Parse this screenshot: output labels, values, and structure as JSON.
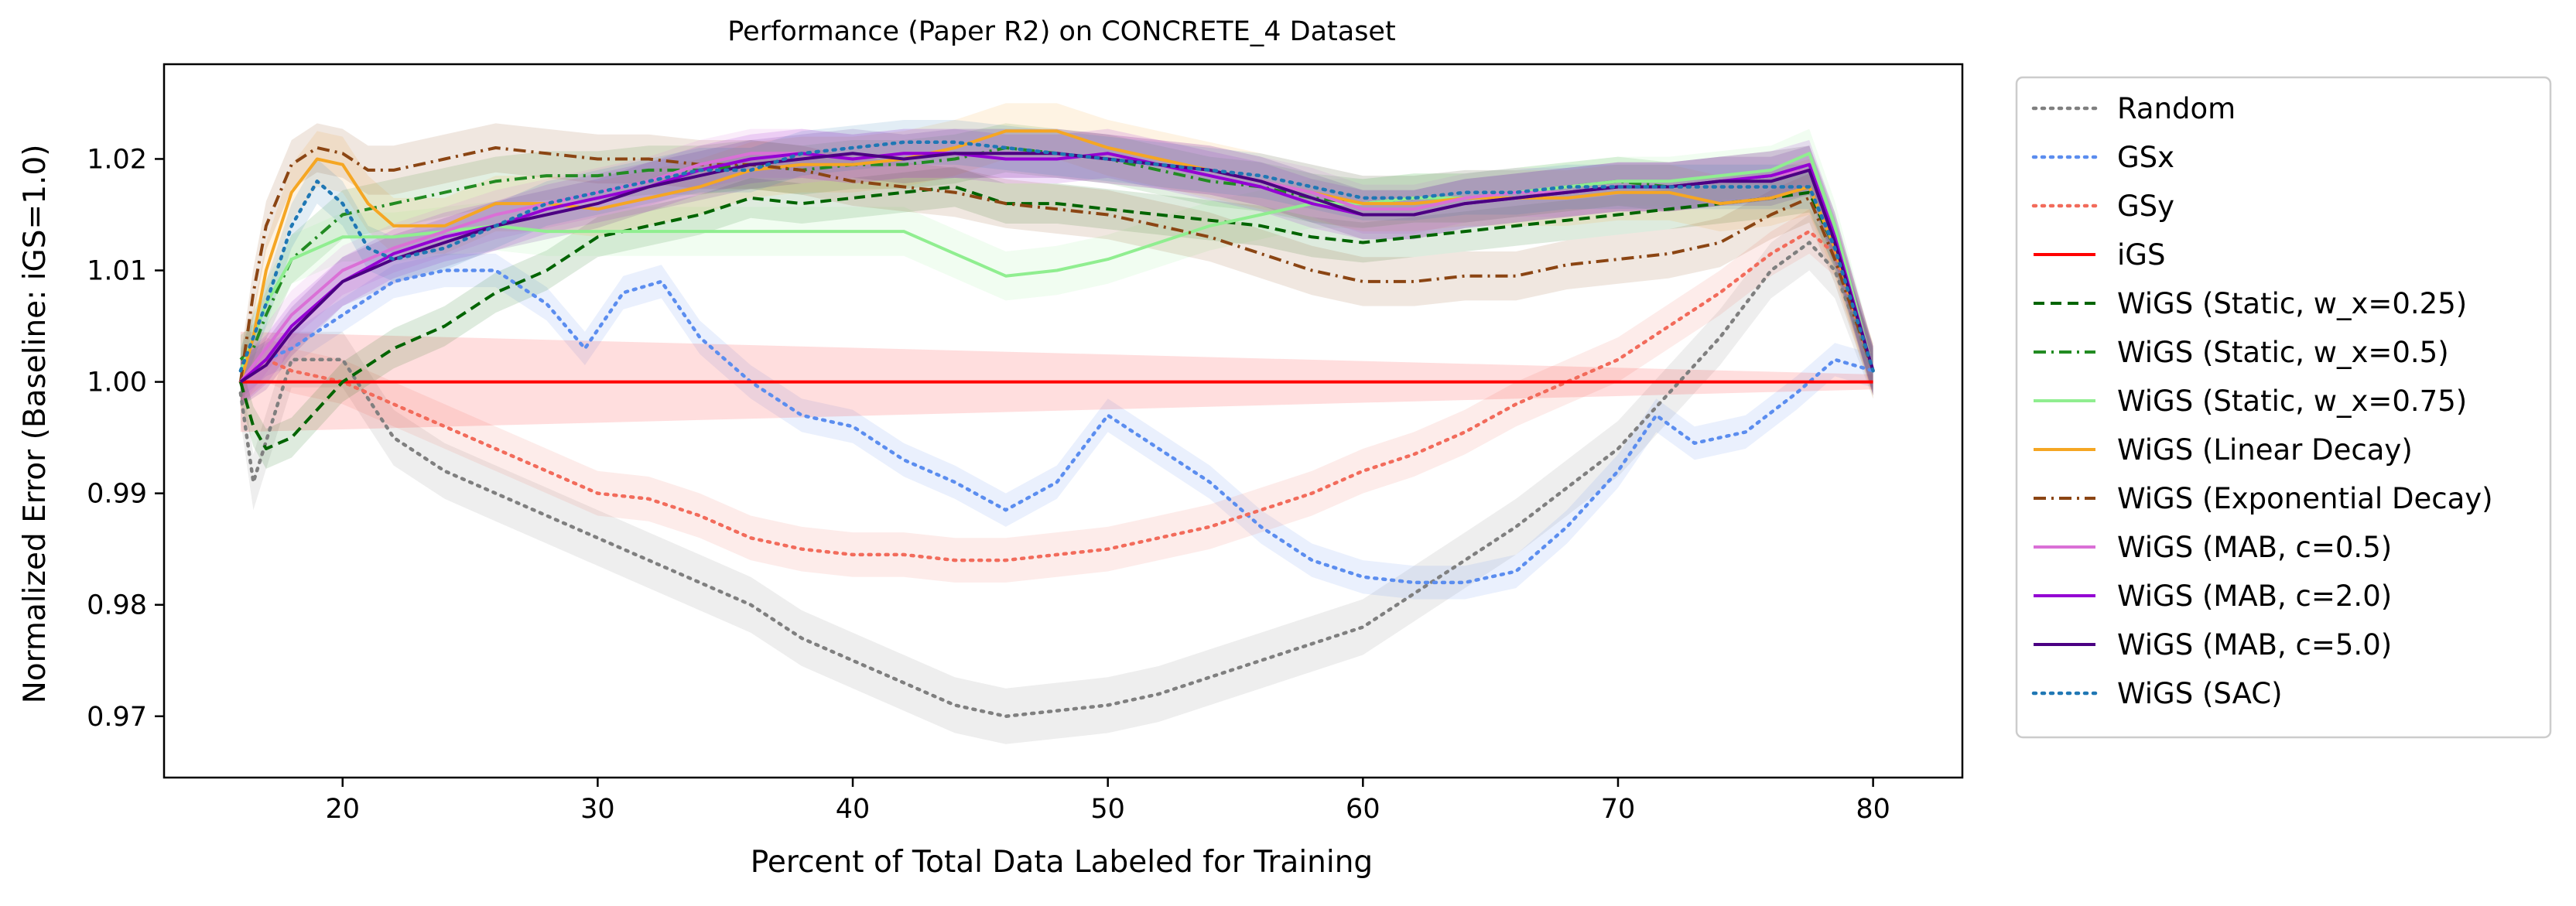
{
  "chart_data": {
    "type": "line",
    "title": "Performance (Paper R2) on CONCRETE_4 Dataset",
    "xlabel": "Percent of Total Data Labeled for Training",
    "ylabel": "Normalized Error (Baseline: iGS=1.0)",
    "xlim": [
      13,
      83.5
    ],
    "ylim": [
      0.9645,
      1.0285
    ],
    "xticks": [
      20,
      30,
      40,
      50,
      60,
      70,
      80
    ],
    "xtick_labels": [
      "20",
      "30",
      "40",
      "50",
      "60",
      "70",
      "80"
    ],
    "yticks": [
      0.97,
      0.98,
      0.99,
      1.0,
      1.01,
      1.02
    ],
    "ytick_labels": [
      "0.97",
      "0.98",
      "0.99",
      "1.00",
      "1.01",
      "1.02"
    ],
    "grid": false,
    "legend_position": "outside-right",
    "series": [
      {
        "name": "Random",
        "color": "#7f7f7f",
        "style": "dotted",
        "band": 0.0025,
        "x": [
          16,
          16.5,
          18,
          20,
          22,
          24,
          26,
          28,
          30,
          32,
          34,
          36,
          38,
          40,
          42,
          44,
          46,
          48,
          50,
          52,
          54,
          56,
          58,
          60,
          62,
          64,
          66,
          68,
          70,
          72,
          74,
          76,
          77.5,
          78.5,
          80
        ],
        "y": [
          0.999,
          0.991,
          1.002,
          1.002,
          0.995,
          0.992,
          0.99,
          0.988,
          0.986,
          0.984,
          0.982,
          0.98,
          0.977,
          0.975,
          0.973,
          0.971,
          0.97,
          0.9705,
          0.971,
          0.972,
          0.9735,
          0.975,
          0.9765,
          0.978,
          0.981,
          0.984,
          0.987,
          0.9905,
          0.994,
          0.999,
          1.004,
          1.01,
          1.0125,
          1.01,
          1.001
        ]
      },
      {
        "name": "GSx",
        "color": "#5b8def",
        "style": "dotted",
        "band": 0.0015,
        "x": [
          16,
          17,
          18,
          20,
          22,
          24,
          26,
          28,
          29.5,
          31,
          32.5,
          34,
          36,
          38,
          40,
          42,
          44,
          46,
          48,
          50,
          52,
          54,
          56,
          58,
          60,
          62,
          64,
          66,
          68,
          70,
          71.5,
          73,
          75,
          77,
          78.5,
          80
        ],
        "y": [
          1.0,
          1.002,
          1.003,
          1.006,
          1.009,
          1.01,
          1.01,
          1.007,
          1.003,
          1.008,
          1.009,
          1.004,
          1.0,
          0.997,
          0.996,
          0.993,
          0.991,
          0.9885,
          0.991,
          0.997,
          0.994,
          0.991,
          0.987,
          0.984,
          0.9825,
          0.982,
          0.982,
          0.983,
          0.987,
          0.992,
          0.997,
          0.9945,
          0.9955,
          0.999,
          1.002,
          1.001
        ]
      },
      {
        "name": "GSy",
        "color": "#f26b5b",
        "style": "dotted",
        "band": 0.002,
        "x": [
          16,
          17,
          18,
          20,
          22,
          24,
          26,
          28,
          30,
          32,
          34,
          36,
          38,
          40,
          42,
          44,
          46,
          48,
          50,
          52,
          54,
          56,
          58,
          60,
          62,
          64,
          66,
          68,
          70,
          72,
          74,
          76,
          77.5,
          78.5,
          80
        ],
        "y": [
          1.0,
          1.002,
          1.001,
          1.0,
          0.998,
          0.996,
          0.994,
          0.992,
          0.99,
          0.9895,
          0.988,
          0.986,
          0.985,
          0.9845,
          0.9845,
          0.984,
          0.984,
          0.9845,
          0.985,
          0.986,
          0.987,
          0.9885,
          0.99,
          0.992,
          0.9935,
          0.9955,
          0.998,
          1.0,
          1.002,
          1.005,
          1.008,
          1.0115,
          1.0135,
          1.0115,
          1.001
        ]
      },
      {
        "name": "iGS",
        "color": "#ff0000",
        "style": "solid",
        "band": 0.0045,
        "band_shrink": true,
        "x": [
          16,
          80
        ],
        "y": [
          1.0,
          1.0
        ]
      },
      {
        "name": "WiGS (Static, w_x=0.25)",
        "color": "#006400",
        "style": "dashed",
        "band": 0.0018,
        "x": [
          16,
          16.5,
          17,
          18,
          20,
          22,
          24,
          26,
          28,
          30,
          32,
          34,
          36,
          38,
          40,
          42,
          44,
          46,
          48,
          50,
          52,
          54,
          56,
          58,
          60,
          62,
          64,
          66,
          68,
          70,
          72,
          74,
          76,
          77.5,
          78.5,
          80
        ],
        "y": [
          1.0,
          0.996,
          0.994,
          0.995,
          1.0,
          1.003,
          1.005,
          1.008,
          1.01,
          1.013,
          1.014,
          1.015,
          1.0165,
          1.016,
          1.0165,
          1.017,
          1.0175,
          1.016,
          1.016,
          1.0155,
          1.015,
          1.0145,
          1.014,
          1.013,
          1.0125,
          1.013,
          1.0135,
          1.014,
          1.0145,
          1.015,
          1.0155,
          1.016,
          1.0165,
          1.017,
          1.012,
          1.001
        ]
      },
      {
        "name": "WiGS (Static, w_x=0.5)",
        "color": "#228b22",
        "style": "dashdot",
        "band": 0.0022,
        "x": [
          16,
          16.5,
          17,
          18,
          20,
          22,
          24,
          26,
          28,
          30,
          32,
          34,
          36,
          38,
          40,
          42,
          44,
          46,
          48,
          50,
          52,
          54,
          56,
          58,
          60,
          62,
          64,
          66,
          68,
          70,
          72,
          74,
          76,
          77.5,
          78.5,
          80
        ],
        "y": [
          1.002,
          1.003,
          1.006,
          1.011,
          1.015,
          1.016,
          1.017,
          1.018,
          1.0185,
          1.0185,
          1.019,
          1.019,
          1.0195,
          1.019,
          1.0195,
          1.0195,
          1.02,
          1.021,
          1.0205,
          1.02,
          1.019,
          1.018,
          1.0175,
          1.0165,
          1.016,
          1.0165,
          1.0165,
          1.017,
          1.0175,
          1.018,
          1.0175,
          1.018,
          1.0185,
          1.019,
          1.013,
          1.001
        ]
      },
      {
        "name": "WiGS (Static, w_x=0.75)",
        "color": "#90ee90",
        "style": "solid",
        "band": 0.0022,
        "x": [
          16,
          16.5,
          17,
          18,
          20,
          22,
          24,
          26,
          28,
          30,
          32,
          34,
          36,
          38,
          40,
          42,
          44,
          46,
          48,
          50,
          52,
          54,
          56,
          58,
          60,
          62,
          64,
          66,
          68,
          70,
          72,
          74,
          76,
          77.5,
          78.5,
          80
        ],
        "y": [
          1.001,
          1.004,
          1.007,
          1.011,
          1.013,
          1.013,
          1.0135,
          1.014,
          1.0135,
          1.0135,
          1.0135,
          1.0135,
          1.0135,
          1.0135,
          1.0135,
          1.0135,
          1.0115,
          1.0095,
          1.01,
          1.011,
          1.0125,
          1.014,
          1.015,
          1.016,
          1.016,
          1.0165,
          1.0165,
          1.017,
          1.0175,
          1.018,
          1.018,
          1.0185,
          1.019,
          1.0205,
          1.014,
          1.001
        ]
      },
      {
        "name": "WiGS (Linear Decay)",
        "color": "#f5a623",
        "style": "solid",
        "band": 0.0025,
        "x": [
          16,
          16.5,
          17,
          18,
          19,
          20,
          21,
          22,
          24,
          26,
          28,
          30,
          32,
          34,
          36,
          38,
          40,
          42,
          44,
          46,
          48,
          50,
          52,
          54,
          56,
          58,
          60,
          62,
          64,
          66,
          68,
          70,
          72,
          74,
          76,
          77.5,
          78.5,
          80
        ],
        "y": [
          1.0,
          1.004,
          1.01,
          1.017,
          1.02,
          1.0195,
          1.016,
          1.014,
          1.014,
          1.016,
          1.016,
          1.0155,
          1.0165,
          1.0175,
          1.019,
          1.0195,
          1.0195,
          1.02,
          1.021,
          1.0225,
          1.0225,
          1.021,
          1.02,
          1.019,
          1.018,
          1.017,
          1.016,
          1.016,
          1.0165,
          1.0165,
          1.0165,
          1.017,
          1.017,
          1.016,
          1.0165,
          1.0175,
          1.012,
          1.001
        ]
      },
      {
        "name": "WiGS (Exponential Decay)",
        "color": "#8b4513",
        "style": "dashdot",
        "band": 0.0022,
        "x": [
          16,
          16.5,
          17,
          18,
          19,
          20,
          21,
          22,
          24,
          26,
          28,
          30,
          32,
          34,
          36,
          38,
          40,
          42,
          44,
          46,
          48,
          50,
          52,
          54,
          56,
          58,
          60,
          62,
          64,
          66,
          68,
          70,
          72,
          74,
          76,
          77.5,
          78.5,
          80
        ],
        "y": [
          1.0,
          1.008,
          1.014,
          1.0195,
          1.021,
          1.0205,
          1.019,
          1.019,
          1.02,
          1.021,
          1.0205,
          1.02,
          1.02,
          1.0195,
          1.0195,
          1.019,
          1.018,
          1.0175,
          1.017,
          1.016,
          1.0155,
          1.015,
          1.014,
          1.013,
          1.0115,
          1.01,
          1.009,
          1.009,
          1.0095,
          1.0095,
          1.0105,
          1.011,
          1.0115,
          1.0125,
          1.015,
          1.0165,
          1.011,
          1.001
        ]
      },
      {
        "name": "WiGS (MAB, c=0.5)",
        "color": "#da70d6",
        "style": "solid",
        "band": 0.0022,
        "x": [
          16,
          17,
          18,
          20,
          22,
          24,
          26,
          28,
          30,
          32,
          34,
          36,
          38,
          40,
          42,
          44,
          46,
          48,
          50,
          52,
          54,
          56,
          58,
          60,
          62,
          64,
          66,
          68,
          70,
          72,
          74,
          76,
          77.5,
          78.5,
          80
        ],
        "y": [
          1.0,
          1.003,
          1.006,
          1.01,
          1.012,
          1.0135,
          1.015,
          1.016,
          1.017,
          1.018,
          1.0195,
          1.0205,
          1.0205,
          1.02,
          1.0205,
          1.0205,
          1.0205,
          1.0205,
          1.02,
          1.0195,
          1.019,
          1.018,
          1.017,
          1.0155,
          1.0155,
          1.0165,
          1.017,
          1.017,
          1.0175,
          1.0175,
          1.018,
          1.0185,
          1.019,
          1.013,
          1.001
        ]
      },
      {
        "name": "WiGS (MAB, c=2.0)",
        "color": "#9400d3",
        "style": "solid",
        "band": 0.0022,
        "x": [
          16,
          17,
          18,
          20,
          22,
          24,
          26,
          28,
          30,
          32,
          34,
          36,
          38,
          40,
          42,
          44,
          46,
          48,
          50,
          52,
          54,
          56,
          58,
          60,
          62,
          64,
          66,
          68,
          70,
          72,
          74,
          76,
          77.5,
          78.5,
          80
        ],
        "y": [
          1.0,
          1.002,
          1.005,
          1.009,
          1.0115,
          1.013,
          1.014,
          1.0155,
          1.0165,
          1.0175,
          1.019,
          1.02,
          1.0205,
          1.02,
          1.0205,
          1.0205,
          1.02,
          1.02,
          1.0205,
          1.0195,
          1.0185,
          1.0175,
          1.016,
          1.015,
          1.015,
          1.016,
          1.0165,
          1.017,
          1.0175,
          1.0175,
          1.018,
          1.0185,
          1.0195,
          1.013,
          1.001
        ]
      },
      {
        "name": "WiGS (MAB, c=5.0)",
        "color": "#4b0082",
        "style": "solid",
        "band": 0.0022,
        "x": [
          16,
          17,
          18,
          20,
          22,
          24,
          26,
          28,
          30,
          32,
          34,
          36,
          38,
          40,
          42,
          44,
          46,
          48,
          50,
          52,
          54,
          56,
          58,
          60,
          62,
          64,
          66,
          68,
          70,
          72,
          74,
          76,
          77.5,
          78.5,
          80
        ],
        "y": [
          1.0,
          1.0015,
          1.0045,
          1.009,
          1.011,
          1.0125,
          1.014,
          1.015,
          1.016,
          1.0175,
          1.0185,
          1.0195,
          1.02,
          1.0205,
          1.02,
          1.0205,
          1.0205,
          1.0205,
          1.02,
          1.0195,
          1.019,
          1.018,
          1.0165,
          1.015,
          1.015,
          1.016,
          1.0165,
          1.017,
          1.0175,
          1.0175,
          1.018,
          1.018,
          1.019,
          1.0125,
          1.001
        ]
      },
      {
        "name": "WiGS (SAC)",
        "color": "#1f77b4",
        "style": "dotted",
        "band": 0.002,
        "x": [
          16,
          17,
          18,
          19,
          20,
          21,
          22,
          24,
          26,
          28,
          30,
          32,
          34,
          36,
          38,
          40,
          42,
          44,
          46,
          48,
          50,
          52,
          54,
          56,
          58,
          60,
          62,
          64,
          66,
          68,
          70,
          72,
          74,
          76,
          77.5,
          78.5,
          80
        ],
        "y": [
          1.001,
          1.007,
          1.014,
          1.018,
          1.016,
          1.012,
          1.011,
          1.012,
          1.014,
          1.016,
          1.017,
          1.018,
          1.019,
          1.019,
          1.0205,
          1.021,
          1.0215,
          1.0215,
          1.021,
          1.0205,
          1.02,
          1.0195,
          1.019,
          1.0185,
          1.0175,
          1.0165,
          1.0165,
          1.017,
          1.017,
          1.0175,
          1.0175,
          1.0175,
          1.0175,
          1.0175,
          1.0175,
          1.012,
          1.001
        ]
      }
    ]
  }
}
